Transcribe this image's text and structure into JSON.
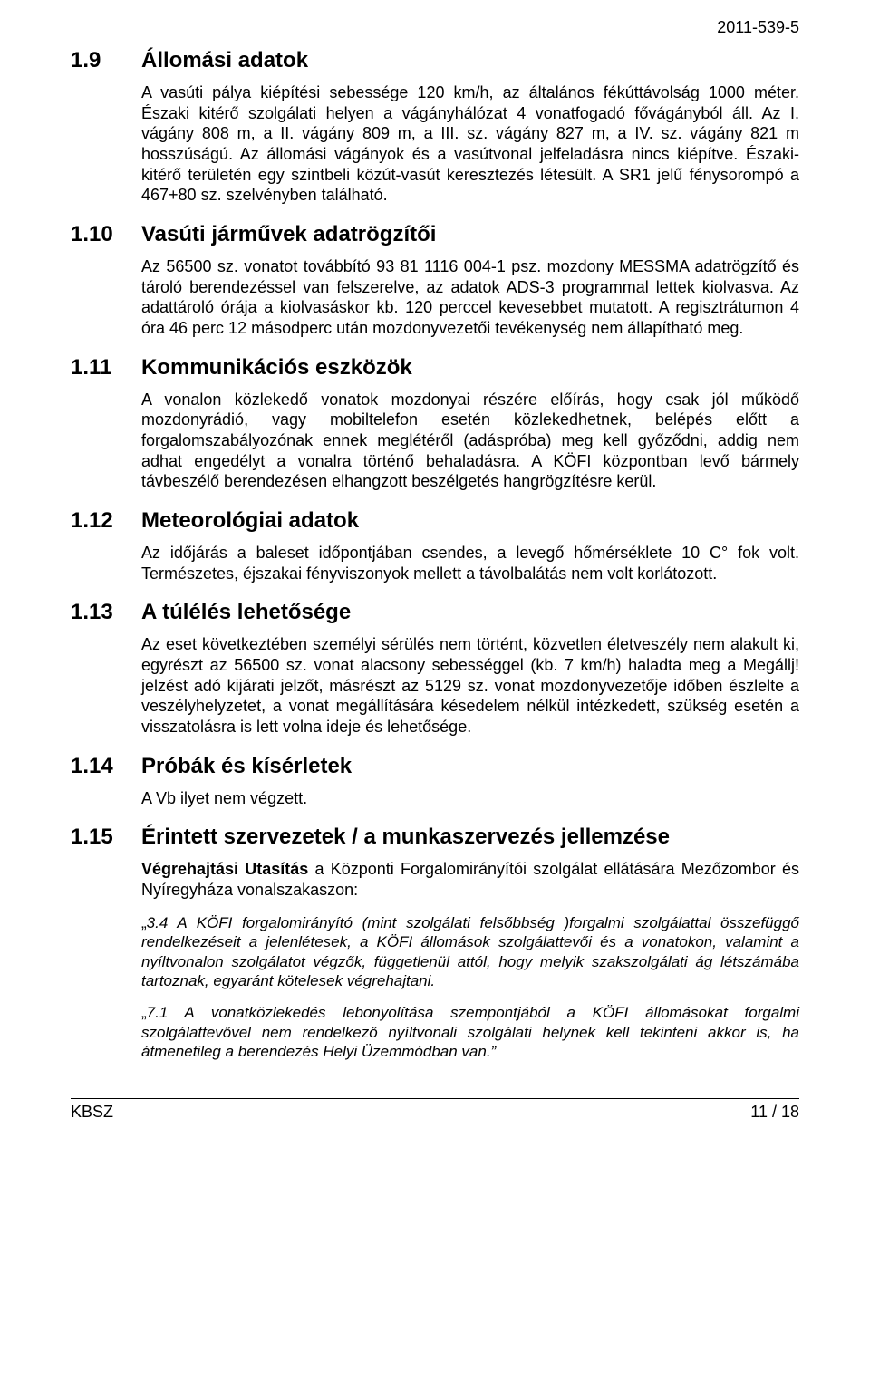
{
  "doc_id": "2011-539-5",
  "sections": [
    {
      "num": "1.9",
      "title": "Állomási adatok",
      "paras": [
        "A vasúti pálya kiépítési sebessége 120 km/h, az általános fékúttávolság 1000 méter. Északi kitérő szolgálati helyen a vágányhálózat 4 vonatfogadó fővágányból áll. Az I. vágány 808 m, a II. vágány 809 m, a III. sz. vágány 827 m, a IV. sz. vágány 821 m hosszúságú. Az állomási vágányok és a vasútvonal jelfeladásra nincs kiépítve. Északi-kitérő területén egy szintbeli közút-vasút keresztezés létesült. A SR1 jelű fénysorompó a 467+80 sz. szelvényben található."
      ]
    },
    {
      "num": "1.10",
      "title": "Vasúti járművek adatrögzítői",
      "paras": [
        "Az 56500 sz. vonatot továbbító 93 81 1116 004-1 psz. mozdony MESSMA adatrögzítő és tároló berendezéssel van felszerelve, az adatok ADS-3 programmal lettek kiolvasva. Az adattároló órája a kiolvasáskor kb. 120 perccel kevesebbet mutatott. A regisztrátumon 4 óra 46 perc 12 másodperc után mozdonyvezetői tevékenység nem állapítható meg."
      ]
    },
    {
      "num": "1.11",
      "title": "Kommunikációs eszközök",
      "paras": [
        "A vonalon közlekedő vonatok mozdonyai részére előírás, hogy csak jól működő mozdonyrádió, vagy mobiltelefon esetén közlekedhetnek, belépés előtt a forgalomszabályozónak ennek meglétéről (adáspróba) meg kell győződni, addig nem adhat engedélyt a vonalra történő behaladásra. A KÖFI központban levő bármely távbeszélő berendezésen elhangzott beszélgetés hangrögzítésre kerül."
      ]
    },
    {
      "num": "1.12",
      "title": "Meteorológiai adatok",
      "paras": [
        "Az időjárás a baleset időpontjában csendes, a levegő hőmérséklete 10 C° fok volt. Természetes, éjszakai fényviszonyok mellett a távolbalátás nem volt korlátozott."
      ]
    },
    {
      "num": "1.13",
      "title": "A túlélés lehetősége",
      "paras": [
        "Az eset következtében személyi sérülés nem történt, közvetlen életveszély nem alakult ki, egyrészt az 56500 sz. vonat alacsony sebességgel (kb. 7 km/h) haladta meg a Megállj! jelzést adó kijárati jelzőt, másrészt az 5129 sz. vonat mozdonyvezetője időben észlelte a veszélyhelyzetet, a vonat megállítására késedelem nélkül intézkedett, szükség esetén a visszatolásra is lett volna ideje és lehetősége."
      ]
    },
    {
      "num": "1.14",
      "title": "Próbák és kísérletek",
      "paras": [
        "A Vb ilyet nem végzett."
      ]
    },
    {
      "num": "1.15",
      "title": "Érintett szervezetek / a munkaszervezés jellemzése",
      "intro_html": "<b>Végrehajtási Utasítás</b> a Központi Forgalomirányítói szolgálat ellátására Mezőzombor és Nyíregyháza vonalszakaszon:",
      "quotes": [
        {
          "lead": "„",
          "body": "3.4 A KÖFI forgalomirányító (mint szolgálati felsőbbség )forgalmi szolgálattal összefüggő rendelkezéseit a jelenlétesek, a KÖFI állomások szolgálattevői és a vonatokon, valamint a nyíltvonalon szolgálatot végzők, függetlenül attól, hogy melyik szakszolgálati ág létszámába tartoznak, egyaránt kötelesek végrehajtani."
        },
        {
          "lead": "„",
          "body": "7.1 A vonatközlekedés lebonyolítása szempontjából a KÖFI állomásokat forgalmi szolgálattevővel nem rendelkező nyíltvonali szolgálati helynek kell tekinteni akkor is, ha átmenetileg a berendezés Helyi Üzemmódban van.”"
        }
      ]
    }
  ],
  "footer": {
    "left": "KBSZ",
    "right": "11 / 18"
  },
  "fonts": {
    "body": 18,
    "heading": 24,
    "quote": 17
  },
  "colors": {
    "text": "#000000",
    "background": "#ffffff",
    "rule": "#000000"
  }
}
